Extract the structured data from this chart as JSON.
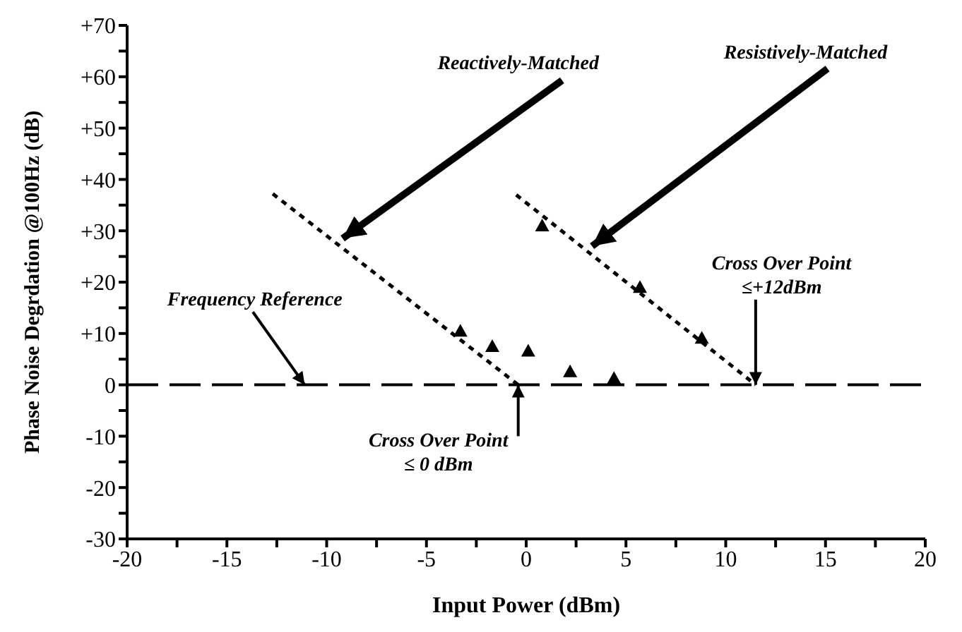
{
  "chart_data": {
    "type": "scatter",
    "xlabel": "Input Power (dBm)",
    "ylabel": "Phase Noise Degrdation @100Hz (dB)",
    "xlim": [
      -20,
      20
    ],
    "xticks": [
      -20,
      {
        "value": -17.5,
        "label": null
      },
      -15,
      {
        "value": -12.5,
        "label": null
      },
      -10,
      {
        "value": -7.5,
        "label": null
      },
      -5,
      {
        "value": -2.5,
        "label": null
      },
      0,
      {
        "value": 2.5,
        "label": null
      },
      5,
      {
        "value": 7.5,
        "label": null
      },
      10,
      {
        "value": 12.5,
        "label": null
      },
      15,
      {
        "value": 17.5,
        "label": null
      },
      20
    ],
    "ylim": [
      -30,
      70
    ],
    "yticks": [
      -30,
      {
        "value": -25,
        "label": null
      },
      -20,
      {
        "value": -15,
        "label": null
      },
      -10,
      {
        "value": -5,
        "label": null
      },
      0,
      {
        "value": 5,
        "label": null
      },
      {
        "value": 10,
        "label": "+10"
      },
      {
        "value": 15,
        "label": null
      },
      {
        "value": 20,
        "label": "+20"
      },
      {
        "value": 25,
        "label": null
      },
      {
        "value": 30,
        "label": "+30"
      },
      {
        "value": 35,
        "label": null
      },
      {
        "value": 40,
        "label": "+40"
      },
      {
        "value": 45,
        "label": null
      },
      {
        "value": 50,
        "label": "+50"
      },
      {
        "value": 55,
        "label": null
      },
      {
        "value": 60,
        "label": "+60"
      },
      {
        "value": 65,
        "label": null
      },
      {
        "value": 70,
        "label": "+70"
      }
    ],
    "grid": false,
    "legend": false,
    "series": [
      {
        "type": "line",
        "color": "#000000",
        "line_style": "dotted",
        "marker": "none",
        "x": [
          -12.7,
          -0.4
        ],
        "values": [
          37.2,
          0
        ]
      },
      {
        "type": "line",
        "color": "#000000",
        "line_style": "dotted",
        "marker": "none",
        "x": [
          -0.5,
          11.5
        ],
        "values": [
          37,
          0
        ]
      },
      {
        "type": "scatter",
        "color": "#000000",
        "marker": "triangle",
        "x": [
          -3.3,
          -1.7,
          0.1,
          0.8,
          2.2,
          4.4,
          5.7,
          8.8
        ],
        "values": [
          10.5,
          7.5,
          6.6,
          31,
          2.6,
          1.3,
          19,
          9.1
        ]
      }
    ],
    "ref_lines": [
      {
        "axis": "y",
        "value": 0,
        "label": null,
        "color": "#000000",
        "line_style": "dashed"
      }
    ],
    "annotations": [
      {
        "text": "Reactively-Matched",
        "x": -9.2,
        "y": 28.5
      },
      {
        "text": "Resistively-Matched",
        "x": 3.3,
        "y": 27
      },
      {
        "text": "Frequency Reference",
        "x": -11.1,
        "y": 0
      },
      {
        "text": "Cross Over Point\n≤+12dBm",
        "x": 11.5,
        "y": 0
      },
      {
        "text": "Cross Over Point\n≤ 0 dBm",
        "x": -0.4,
        "y": 0
      }
    ]
  }
}
